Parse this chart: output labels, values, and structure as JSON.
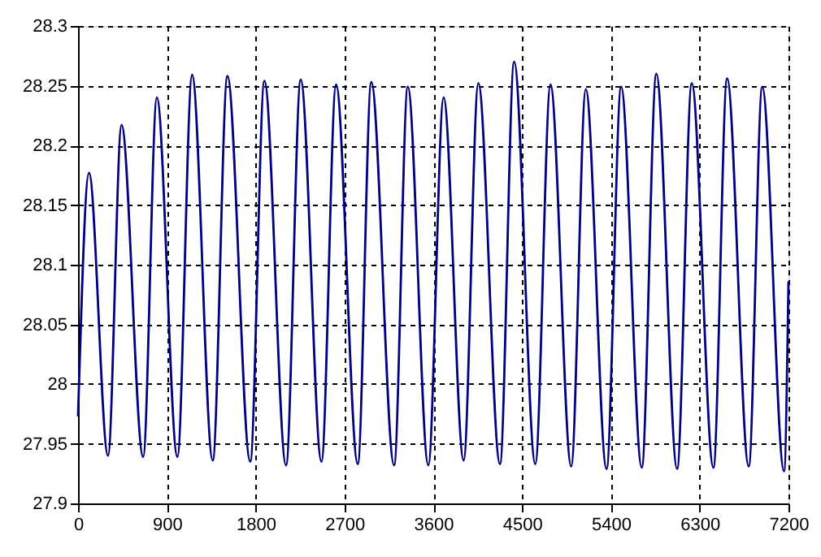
{
  "chart_data": {
    "type": "line",
    "x": [
      0,
      111,
      304,
      441,
      660,
      799,
      1007,
      1156,
      1365,
      1514,
      1745,
      1889,
      2108,
      2257,
      2467,
      2615,
      2835,
      2972,
      3203,
      3342,
      3550,
      3705,
      3908,
      4057,
      4276,
      4420,
      4634,
      4788,
      4998,
      5146,
      5356,
      5504,
      5713,
      5861,
      6071,
      6220,
      6439,
      6578,
      6797,
      6934,
      7155,
      7200
    ],
    "series": [
      {
        "color": "#000080",
        "values": [
          27.973,
          28.177,
          27.94,
          28.217,
          27.939,
          28.24,
          27.939,
          28.259,
          27.936,
          28.258,
          27.935,
          28.254,
          27.932,
          28.255,
          27.935,
          28.251,
          27.933,
          28.253,
          27.932,
          28.249,
          27.932,
          28.24,
          27.936,
          28.252,
          27.933,
          28.27,
          27.933,
          28.251,
          27.931,
          28.247,
          27.929,
          28.249,
          27.93,
          28.26,
          27.929,
          28.252,
          27.93,
          28.256,
          27.931,
          28.249,
          27.927,
          28.086
        ]
      }
    ],
    "xlim": [
      0,
      7200
    ],
    "xticks": [
      0,
      900,
      1800,
      2700,
      3600,
      4500,
      5400,
      6300,
      7200
    ],
    "ylim": [
      27.9,
      28.3
    ],
    "yticks": [
      27.9,
      27.95,
      28,
      28.05,
      28.1,
      28.15,
      28.2,
      28.25,
      28.3
    ],
    "grid": true,
    "line_style": "solid",
    "marker": "none"
  }
}
